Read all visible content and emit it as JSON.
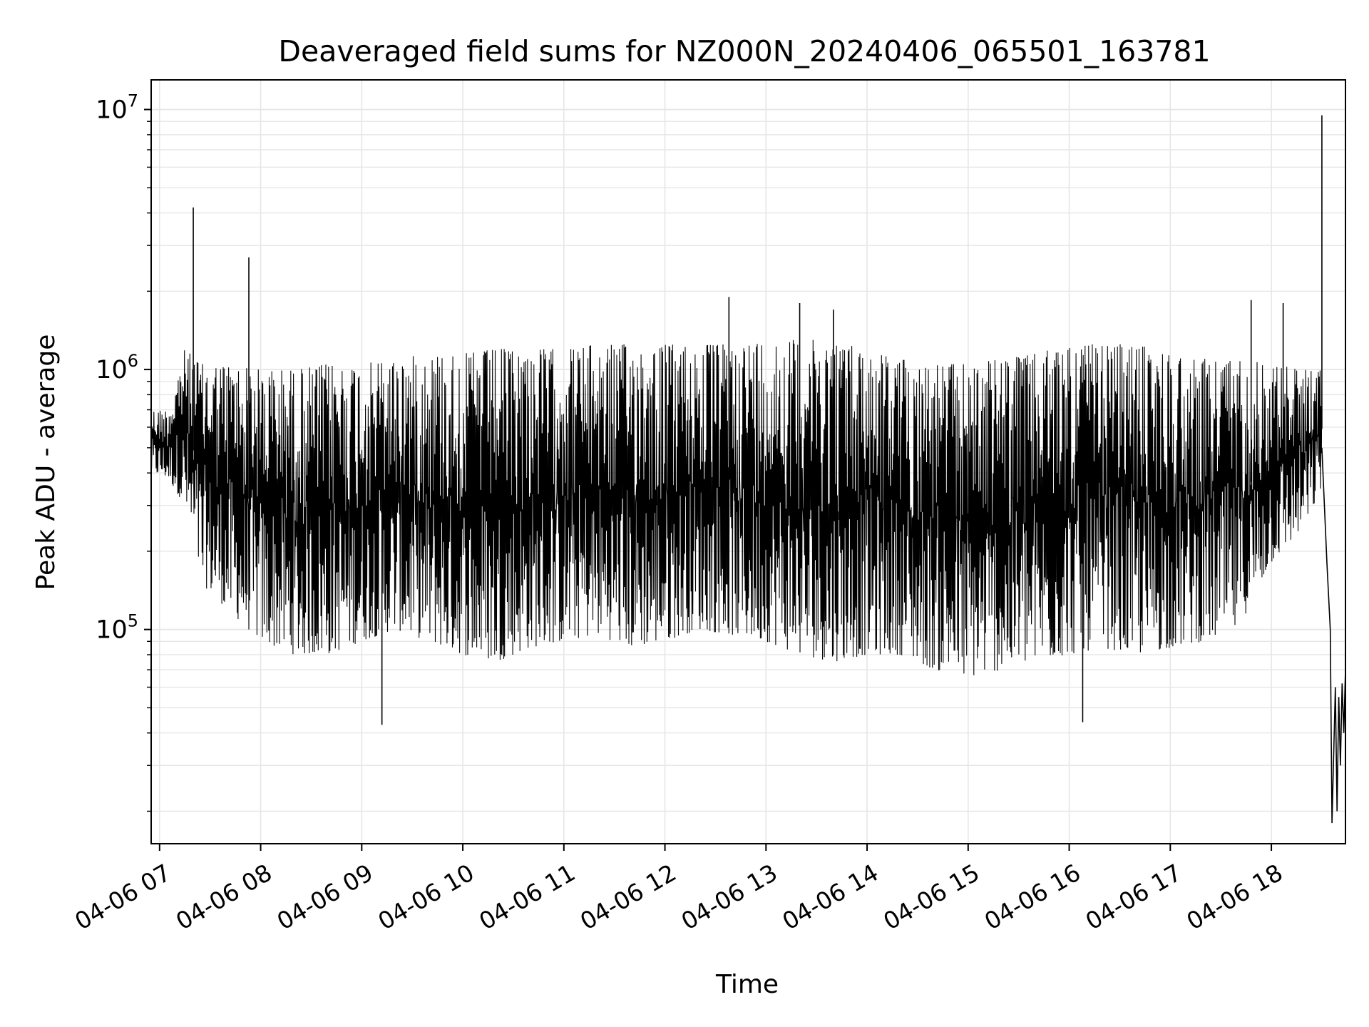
{
  "chart_data": {
    "type": "line",
    "title": "Deaveraged field sums for NZ000N_20240406_065501_163781",
    "xlabel": "Time",
    "ylabel": "Peak ADU - average",
    "yscale": "log",
    "ylim": [
      15000,
      13000000
    ],
    "xlim": [
      "2024-04-06 06:55",
      "2024-04-06 18:44"
    ],
    "grid": true,
    "line_color": "#000000",
    "grid_color": "#e6e6e6",
    "x_ticks": [
      "2024-04-06 07:00",
      "2024-04-06 08:00",
      "2024-04-06 09:00",
      "2024-04-06 10:00",
      "2024-04-06 11:00",
      "2024-04-06 12:00",
      "2024-04-06 13:00",
      "2024-04-06 14:00",
      "2024-04-06 15:00",
      "2024-04-06 16:00",
      "2024-04-06 17:00",
      "2024-04-06 18:00"
    ],
    "x_tick_labels": [
      "04-06 07",
      "04-06 08",
      "04-06 09",
      "04-06 10",
      "04-06 11",
      "04-06 12",
      "04-06 13",
      "04-06 14",
      "04-06 15",
      "04-06 16",
      "04-06 17",
      "04-06 18"
    ],
    "y_ticks": [
      100000,
      1000000,
      10000000
    ],
    "y_tick_labels": [
      {
        "base": "10",
        "exp": "5"
      },
      {
        "base": "10",
        "exp": "6"
      },
      {
        "base": "10",
        "exp": "7"
      }
    ],
    "series": [
      {
        "envelope": [
          {
            "t": "2024-04-06 06:55",
            "high": 700000,
            "low": 400000
          },
          {
            "t": "2024-04-06 07:05",
            "high": 700000,
            "low": 380000
          },
          {
            "t": "2024-04-06 07:15",
            "high": 1200000,
            "low": 300000
          },
          {
            "t": "2024-04-06 07:25",
            "high": 1050000,
            "low": 150000
          },
          {
            "t": "2024-04-06 07:40",
            "high": 1050000,
            "low": 120000
          },
          {
            "t": "2024-04-06 08:00",
            "high": 1000000,
            "low": 90000
          },
          {
            "t": "2024-04-06 08:20",
            "high": 1000000,
            "low": 80000
          },
          {
            "t": "2024-04-06 08:40",
            "high": 1050000,
            "low": 80000
          },
          {
            "t": "2024-04-06 09:00",
            "high": 1050000,
            "low": 90000
          },
          {
            "t": "2024-04-06 09:20",
            "high": 1100000,
            "low": 100000
          },
          {
            "t": "2024-04-06 09:40",
            "high": 1150000,
            "low": 90000
          },
          {
            "t": "2024-04-06 10:00",
            "high": 1150000,
            "low": 80000
          },
          {
            "t": "2024-04-06 10:20",
            "high": 1200000,
            "low": 75000
          },
          {
            "t": "2024-04-06 10:40",
            "high": 1200000,
            "low": 85000
          },
          {
            "t": "2024-04-06 11:00",
            "high": 1200000,
            "low": 90000
          },
          {
            "t": "2024-04-06 11:20",
            "high": 1250000,
            "low": 95000
          },
          {
            "t": "2024-04-06 11:40",
            "high": 1250000,
            "low": 85000
          },
          {
            "t": "2024-04-06 12:00",
            "high": 1250000,
            "low": 90000
          },
          {
            "t": "2024-04-06 12:20",
            "high": 1250000,
            "low": 100000
          },
          {
            "t": "2024-04-06 12:40",
            "high": 1250000,
            "low": 95000
          },
          {
            "t": "2024-04-06 13:00",
            "high": 1300000,
            "low": 90000
          },
          {
            "t": "2024-04-06 13:20",
            "high": 1300000,
            "low": 80000
          },
          {
            "t": "2024-04-06 13:40",
            "high": 1300000,
            "low": 75000
          },
          {
            "t": "2024-04-06 14:00",
            "high": 1200000,
            "low": 80000
          },
          {
            "t": "2024-04-06 14:20",
            "high": 1100000,
            "low": 80000
          },
          {
            "t": "2024-04-06 14:40",
            "high": 1050000,
            "low": 70000
          },
          {
            "t": "2024-04-06 15:00",
            "high": 1050000,
            "low": 65000
          },
          {
            "t": "2024-04-06 15:20",
            "high": 1100000,
            "low": 70000
          },
          {
            "t": "2024-04-06 15:40",
            "high": 1150000,
            "low": 75000
          },
          {
            "t": "2024-04-06 16:00",
            "high": 1250000,
            "low": 80000
          },
          {
            "t": "2024-04-06 16:20",
            "high": 1250000,
            "low": 85000
          },
          {
            "t": "2024-04-06 16:40",
            "high": 1250000,
            "low": 80000
          },
          {
            "t": "2024-04-06 17:00",
            "high": 1150000,
            "low": 85000
          },
          {
            "t": "2024-04-06 17:20",
            "high": 1100000,
            "low": 90000
          },
          {
            "t": "2024-04-06 17:40",
            "high": 1100000,
            "low": 100000
          },
          {
            "t": "2024-04-06 18:00",
            "high": 1050000,
            "low": 180000
          },
          {
            "t": "2024-04-06 18:20",
            "high": 1000000,
            "low": 250000
          },
          {
            "t": "2024-04-06 18:30",
            "high": 1000000,
            "low": 350000
          }
        ],
        "spikes": [
          {
            "t": "2024-04-06 07:20",
            "value": 4200000
          },
          {
            "t": "2024-04-06 07:53",
            "value": 2700000
          },
          {
            "t": "2024-04-06 09:12",
            "value": 43000
          },
          {
            "t": "2024-04-06 12:38",
            "value": 1900000
          },
          {
            "t": "2024-04-06 13:20",
            "value": 1800000
          },
          {
            "t": "2024-04-06 13:40",
            "value": 1700000
          },
          {
            "t": "2024-04-06 16:08",
            "value": 44000
          },
          {
            "t": "2024-04-06 17:48",
            "value": 1850000
          },
          {
            "t": "2024-04-06 18:07",
            "value": 1800000
          },
          {
            "t": "2024-04-06 18:30",
            "value": 9500000
          }
        ],
        "tail": [
          {
            "t": "2024-04-06 18:30",
            "value": 500000
          },
          {
            "t": "2024-04-06 18:33",
            "value": 180000
          },
          {
            "t": "2024-04-06 18:35",
            "value": 100000
          },
          {
            "t": "2024-04-06 18:36",
            "value": 18000
          },
          {
            "t": "2024-04-06 18:38",
            "value": 60000
          },
          {
            "t": "2024-04-06 18:39",
            "value": 20000
          },
          {
            "t": "2024-04-06 18:40",
            "value": 55000
          },
          {
            "t": "2024-04-06 18:41",
            "value": 30000
          },
          {
            "t": "2024-04-06 18:42",
            "value": 62000
          },
          {
            "t": "2024-04-06 18:43",
            "value": 40000
          },
          {
            "t": "2024-04-06 18:44",
            "value": 70000
          }
        ]
      }
    ]
  }
}
